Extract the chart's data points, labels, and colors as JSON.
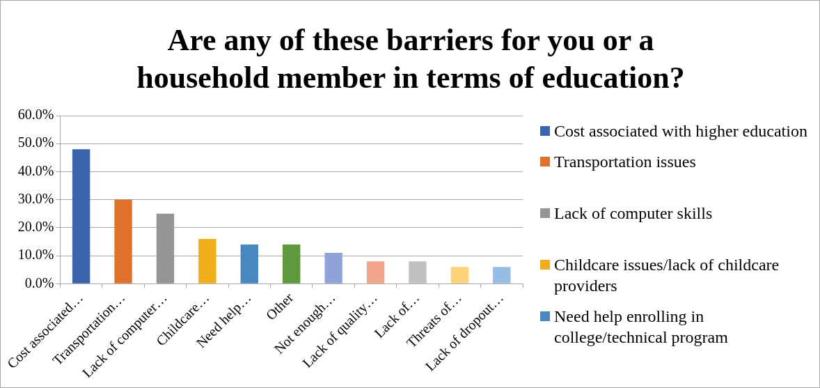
{
  "chart_data": {
    "type": "bar",
    "title": "Are any of these barriers for you or a household member in terms of education?",
    "categories": [
      "Cost associated…",
      "Transportation…",
      "Lack of computer…",
      "Childcare…",
      "Need help…",
      "Other",
      "Not enough…",
      "Lack of quality…",
      "Lack of…",
      "Threats of…",
      "Lack of dropout…"
    ],
    "series": [
      {
        "name": "Cost associated with higher education",
        "color": "#3b64ad",
        "values": [
          48,
          null,
          null,
          null,
          null,
          null,
          null,
          null,
          null,
          null,
          null
        ]
      },
      {
        "name": "Transportation issues",
        "color": "#e0712c",
        "values": [
          null,
          30,
          null,
          null,
          null,
          null,
          null,
          null,
          null,
          null,
          null
        ]
      },
      {
        "name": "Lack of computer skills",
        "color": "#959595",
        "values": [
          null,
          null,
          25,
          null,
          null,
          null,
          null,
          null,
          null,
          null,
          null
        ]
      },
      {
        "name": "Childcare issues/lack of childcare providers",
        "color": "#efae1a",
        "values": [
          null,
          null,
          null,
          16,
          null,
          null,
          null,
          null,
          null,
          null,
          null
        ]
      },
      {
        "name": "Need help enrolling in college/technical program",
        "color": "#4a87c0",
        "values": [
          null,
          null,
          null,
          null,
          14,
          null,
          null,
          null,
          null,
          null,
          null
        ]
      },
      {
        "color": "#5d9a3f",
        "values": [
          null,
          null,
          null,
          null,
          null,
          14,
          null,
          null,
          null,
          null,
          null
        ]
      },
      {
        "color": "#8fa3d8",
        "values": [
          null,
          null,
          null,
          null,
          null,
          null,
          11,
          null,
          null,
          null,
          null
        ]
      },
      {
        "color": "#f2a68a",
        "values": [
          null,
          null,
          null,
          null,
          null,
          null,
          null,
          8,
          null,
          null,
          null
        ]
      },
      {
        "color": "#c0c0c0",
        "values": [
          null,
          null,
          null,
          null,
          null,
          null,
          null,
          null,
          8,
          null,
          null
        ]
      },
      {
        "color": "#fdd27a",
        "values": [
          null,
          null,
          null,
          null,
          null,
          null,
          null,
          null,
          null,
          6,
          null
        ]
      },
      {
        "color": "#98bde5",
        "values": [
          null,
          null,
          null,
          null,
          null,
          null,
          null,
          null,
          null,
          null,
          6
        ]
      }
    ],
    "ylim": [
      0,
      60
    ],
    "yticks": [
      {
        "value": 0,
        "label": "0.0%"
      },
      {
        "value": 10,
        "label": "10.0%"
      },
      {
        "value": 20,
        "label": "20.0%"
      },
      {
        "value": 30,
        "label": "30.0%"
      },
      {
        "value": 40,
        "label": "40.0%"
      },
      {
        "value": 50,
        "label": "50.0%"
      },
      {
        "value": 60,
        "label": "60.0%"
      }
    ],
    "grid": "y",
    "legend": "right"
  }
}
